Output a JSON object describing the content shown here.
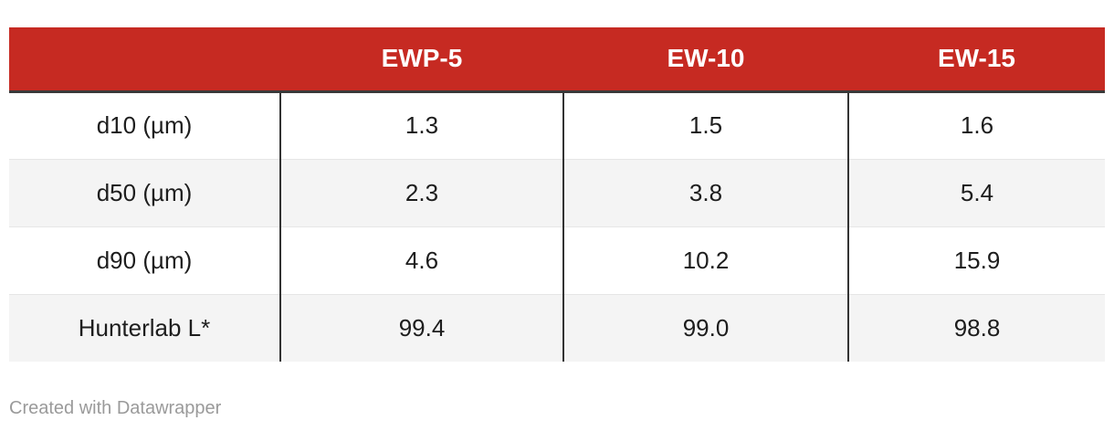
{
  "chart_data": {
    "type": "table",
    "columns": [
      "",
      "EWP-5",
      "EW-10",
      "EW-15"
    ],
    "rows": [
      {
        "label": "d10 (µm)",
        "values": [
          "1.3",
          "1.5",
          "1.6"
        ]
      },
      {
        "label": "d50 (µm)",
        "values": [
          "2.3",
          "3.8",
          "5.4"
        ]
      },
      {
        "label": "d90 (µm)",
        "values": [
          "4.6",
          "10.2",
          "15.9"
        ]
      },
      {
        "label": "Hunterlab L*",
        "values": [
          "99.4",
          "99.0",
          "98.8"
        ]
      }
    ]
  },
  "colors": {
    "header_background": "#c62a22",
    "header_text": "#ffffff",
    "stripe": "#f4f4f4"
  },
  "footer": {
    "credit": "Created with Datawrapper"
  }
}
